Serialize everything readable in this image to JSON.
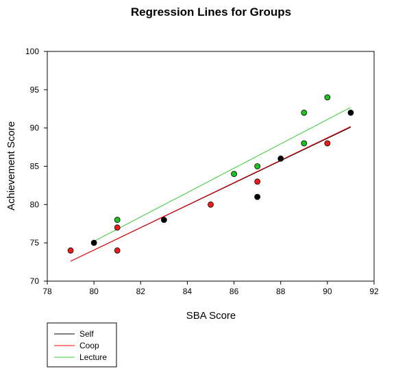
{
  "chart_data": {
    "type": "scatter",
    "title": "Regression Lines for Groups",
    "xlabel": "SBA Score",
    "ylabel": "Achievement Score",
    "xlim": [
      78,
      92
    ],
    "ylim": [
      70,
      100
    ],
    "xticks": [
      "78",
      "80",
      "82",
      "84",
      "86",
      "88",
      "90",
      "92"
    ],
    "yticks": [
      "70",
      "75",
      "80",
      "85",
      "90",
      "95",
      "100"
    ],
    "grid": false,
    "legend_position": "bottom-left",
    "series": [
      {
        "name": "Self",
        "color": "#000000",
        "line_color": "#000000",
        "points": [
          [
            80,
            75
          ],
          [
            83,
            78
          ],
          [
            87,
            81
          ],
          [
            88,
            86
          ],
          [
            91,
            92
          ]
        ],
        "regression": [
          [
            79,
            72.6
          ],
          [
            91,
            90.1
          ]
        ]
      },
      {
        "name": "Coop",
        "color": "#ee1c1c",
        "line_color": "#ff0000",
        "points": [
          [
            79,
            74
          ],
          [
            81,
            77
          ],
          [
            81,
            74
          ],
          [
            85,
            80
          ],
          [
            87,
            83
          ],
          [
            90,
            88
          ]
        ],
        "regression": [
          [
            79,
            72.6
          ],
          [
            91,
            90.2
          ]
        ]
      },
      {
        "name": "Lecture",
        "color": "#1ec21e",
        "line_color": "#33cc33",
        "points": [
          [
            81,
            78
          ],
          [
            86,
            84
          ],
          [
            87,
            85
          ],
          [
            89,
            92
          ],
          [
            89,
            88
          ],
          [
            90,
            94
          ]
        ],
        "regression": [
          [
            80,
            75.2
          ],
          [
            91,
            92.7
          ]
        ]
      }
    ]
  }
}
